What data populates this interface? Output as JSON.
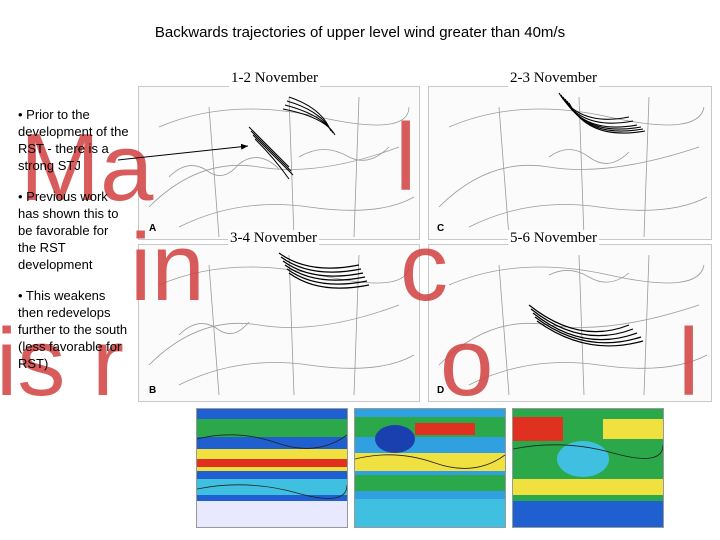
{
  "slide": {
    "title": "Backwards trajectories of upper level wind greater than 40m/s",
    "watermark_lines": [
      "Ma",
      "l",
      "in",
      "c",
      "is r",
      "o",
      "l"
    ],
    "panel_labels": [
      "1-2 November",
      "2-3 November",
      "3-4 November",
      "5-6 November"
    ],
    "panel_tags": [
      "A",
      "B",
      "C",
      "D"
    ],
    "bullets": [
      "• Prior to the development of the RST - there is a strong STJ",
      "• Previous work has shown this to be favorable for the RST development",
      "• This weakens then redevelops further to the south (less favorable for RST)"
    ]
  },
  "colors": {
    "watermark": "#d24040",
    "trajectory": "#000000",
    "map_lines": "#9a9a9a"
  }
}
